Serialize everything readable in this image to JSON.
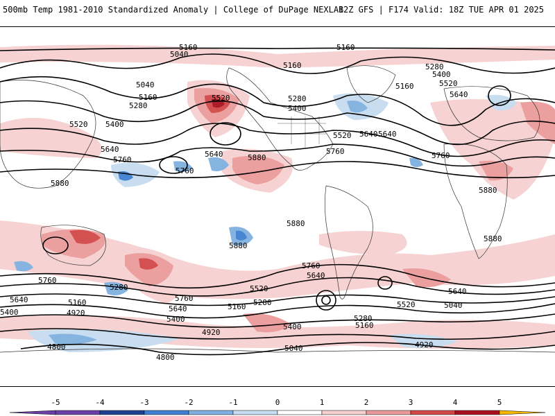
{
  "header": {
    "title_left": "500mb Temp 1981-2010 Standardized Anomaly | College of DuPage NEXLAB",
    "title_right": "12Z GFS | F174 Valid: 18Z TUE APR 01 2025"
  },
  "colors": {
    "background": "#ffffff",
    "contour": "#000000",
    "coast": "#333333",
    "neg5": "#6a3fa8",
    "neg4": "#1f3f8f",
    "neg3": "#3f7fd0",
    "neg2": "#80b0e0",
    "neg1": "#c6dcf0",
    "pos1": "#f6d0d0",
    "pos2": "#ea9a9a",
    "pos3": "#d24848",
    "pos4": "#a81020",
    "pos5": "#f5b800"
  },
  "colorbar": {
    "ticks": [
      "-5",
      "-4",
      "-3",
      "-2",
      "-1",
      "0",
      "1",
      "2",
      "3",
      "4",
      "5"
    ]
  },
  "contour_labels": {
    "l01": "5160",
    "l02": "5160",
    "l03": "5040",
    "l04": "5160",
    "l05": "5280",
    "l06": "5400",
    "l07": "5520",
    "l08": "5040",
    "l09": "5160",
    "l10": "5280",
    "l11": "5400",
    "l12": "5520",
    "l13": "5400",
    "l14": "5520",
    "l15": "5280",
    "l16": "5160",
    "l17": "5400",
    "l18": "5640",
    "l19": "5640",
    "l20": "5760",
    "l21": "5880",
    "l22": "5640",
    "l23": "5520",
    "l24": "5640",
    "l25": "5760",
    "l26": "5880",
    "l27": "5760",
    "l28": "5880",
    "l29": "5760",
    "l30": "5640",
    "l31": "5880",
    "l32": "5880",
    "l33": "5880",
    "l34": "5760",
    "l35": "5640",
    "l36": "5760",
    "l37": "5640",
    "l38": "5400",
    "l39": "5040",
    "l40": "5640",
    "l41": "5160",
    "l42": "4920",
    "l43": "5280",
    "l44": "5760",
    "l45": "5640",
    "l46": "5400",
    "l47": "5160",
    "l48": "5280",
    "l49": "5520",
    "l50": "5400",
    "l51": "5280",
    "l52": "5160",
    "l53": "4920",
    "l54": "5040",
    "l55": "4800",
    "l56": "4800",
    "l57": "4920",
    "l58": "5520"
  }
}
